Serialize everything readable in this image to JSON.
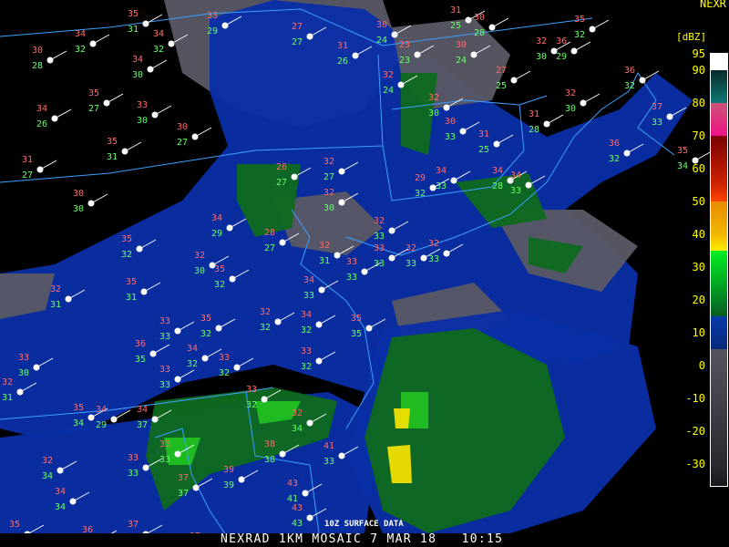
{
  "product": {
    "title": "NEXRAD 1KM MOSAIC 7 MAR 18   10:15",
    "overlay_label": "10Z SURFACE DATA"
  },
  "legend": {
    "title": "NEXR",
    "unit": "[dBZ]",
    "ticks": [
      "95",
      "90",
      "80",
      "70",
      "60",
      "50",
      "40",
      "30",
      "20",
      "10",
      "0",
      "-10",
      "-20",
      "-30"
    ],
    "tick_values": [
      95,
      90,
      80,
      70,
      60,
      50,
      40,
      30,
      20,
      10,
      0,
      -10,
      -20,
      -30
    ],
    "colors": {
      "label": "#ffff00",
      "temperature": "#ff6a6a",
      "dewpoint": "#66ff66",
      "boundaries": "#3aa0ff",
      "station": "#ffffff"
    }
  },
  "radar_colors": {
    "gray": "#5a5a66",
    "blue": "#0a2fa8",
    "darkblue": "#082060",
    "green": "#0f6a1e",
    "brightgreen": "#22c022",
    "yellow": "#f0e000"
  },
  "stations": [
    {
      "t": "35",
      "d": "31"
    },
    {
      "t": "34",
      "d": "32"
    },
    {
      "t": "30",
      "d": "28"
    },
    {
      "t": "34",
      "d": "32"
    },
    {
      "t": "34",
      "d": "30"
    },
    {
      "t": "33",
      "d": "29"
    },
    {
      "t": "27",
      "d": "27"
    },
    {
      "t": "31",
      "d": "26"
    },
    {
      "t": "30",
      "d": "24"
    },
    {
      "t": "23",
      "d": "23"
    },
    {
      "t": "31",
      "d": "25"
    },
    {
      "t": "30",
      "d": "28"
    },
    {
      "t": "30",
      "d": "24"
    },
    {
      "t": "27",
      "d": "25"
    },
    {
      "t": "32",
      "d": "30"
    },
    {
      "t": "36",
      "d": "29"
    },
    {
      "t": "35",
      "d": "32"
    },
    {
      "t": "35",
      "d": "27"
    },
    {
      "t": "34",
      "d": "26"
    },
    {
      "t": "33",
      "d": "30"
    },
    {
      "t": "30",
      "d": "27"
    },
    {
      "t": "35",
      "d": "31"
    },
    {
      "t": "31",
      "d": "27"
    },
    {
      "t": "30",
      "d": "30"
    },
    {
      "t": "26",
      "d": "27"
    },
    {
      "t": "32",
      "d": "27"
    },
    {
      "t": "32",
      "d": "30"
    },
    {
      "t": "32",
      "d": "24"
    },
    {
      "t": "32",
      "d": "30"
    },
    {
      "t": "30",
      "d": "33"
    },
    {
      "t": "31",
      "d": "25"
    },
    {
      "t": "31",
      "d": "28"
    },
    {
      "t": "32",
      "d": "30"
    },
    {
      "t": "36",
      "d": "32"
    },
    {
      "t": "37",
      "d": "33"
    },
    {
      "t": "36",
      "d": "32"
    },
    {
      "t": "35",
      "d": "34"
    },
    {
      "t": "34",
      "d": "29"
    },
    {
      "t": "28",
      "d": "27"
    },
    {
      "t": "35",
      "d": "32"
    },
    {
      "t": "32",
      "d": "30"
    },
    {
      "t": "35",
      "d": "32"
    },
    {
      "t": "35",
      "d": "31"
    },
    {
      "t": "32",
      "d": "31"
    },
    {
      "t": "33",
      "d": "33"
    },
    {
      "t": "35",
      "d": "32"
    },
    {
      "t": "32",
      "d": "32"
    },
    {
      "t": "34",
      "d": "32"
    },
    {
      "t": "35",
      "d": "35"
    },
    {
      "t": "36",
      "d": "35"
    },
    {
      "t": "34",
      "d": "32"
    },
    {
      "t": "33",
      "d": "32"
    },
    {
      "t": "33",
      "d": "30"
    },
    {
      "t": "32",
      "d": "31"
    },
    {
      "t": "33",
      "d": "33"
    },
    {
      "t": "33",
      "d": "32"
    },
    {
      "t": "35",
      "d": "34"
    },
    {
      "t": "34",
      "d": "29"
    },
    {
      "t": "34",
      "d": "37"
    },
    {
      "t": "33",
      "d": "32"
    },
    {
      "t": "32",
      "d": "34"
    },
    {
      "t": "41",
      "d": "33"
    },
    {
      "t": "38",
      "d": "38"
    },
    {
      "t": "32",
      "d": "34"
    },
    {
      "t": "34",
      "d": "34"
    },
    {
      "t": "33",
      "d": "33"
    },
    {
      "t": "33",
      "d": "33"
    },
    {
      "t": "37",
      "d": "37"
    },
    {
      "t": "39",
      "d": "39"
    },
    {
      "t": "43",
      "d": "41"
    },
    {
      "t": "43",
      "d": "43"
    },
    {
      "t": "35",
      "d": ""
    },
    {
      "t": "36",
      "d": ""
    },
    {
      "t": "37",
      "d": ""
    },
    {
      "t": "37",
      "d": "37"
    },
    {
      "t": "34",
      "d": "28"
    },
    {
      "t": "34",
      "d": "33"
    },
    {
      "t": "34",
      "d": "33"
    },
    {
      "t": "29",
      "d": "32"
    },
    {
      "t": "32",
      "d": "33"
    },
    {
      "t": "33",
      "d": "33"
    },
    {
      "t": "32",
      "d": "33"
    },
    {
      "t": "32",
      "d": "33"
    },
    {
      "t": "32",
      "d": "31"
    },
    {
      "t": "33",
      "d": "33"
    },
    {
      "t": "34",
      "d": "33"
    }
  ]
}
